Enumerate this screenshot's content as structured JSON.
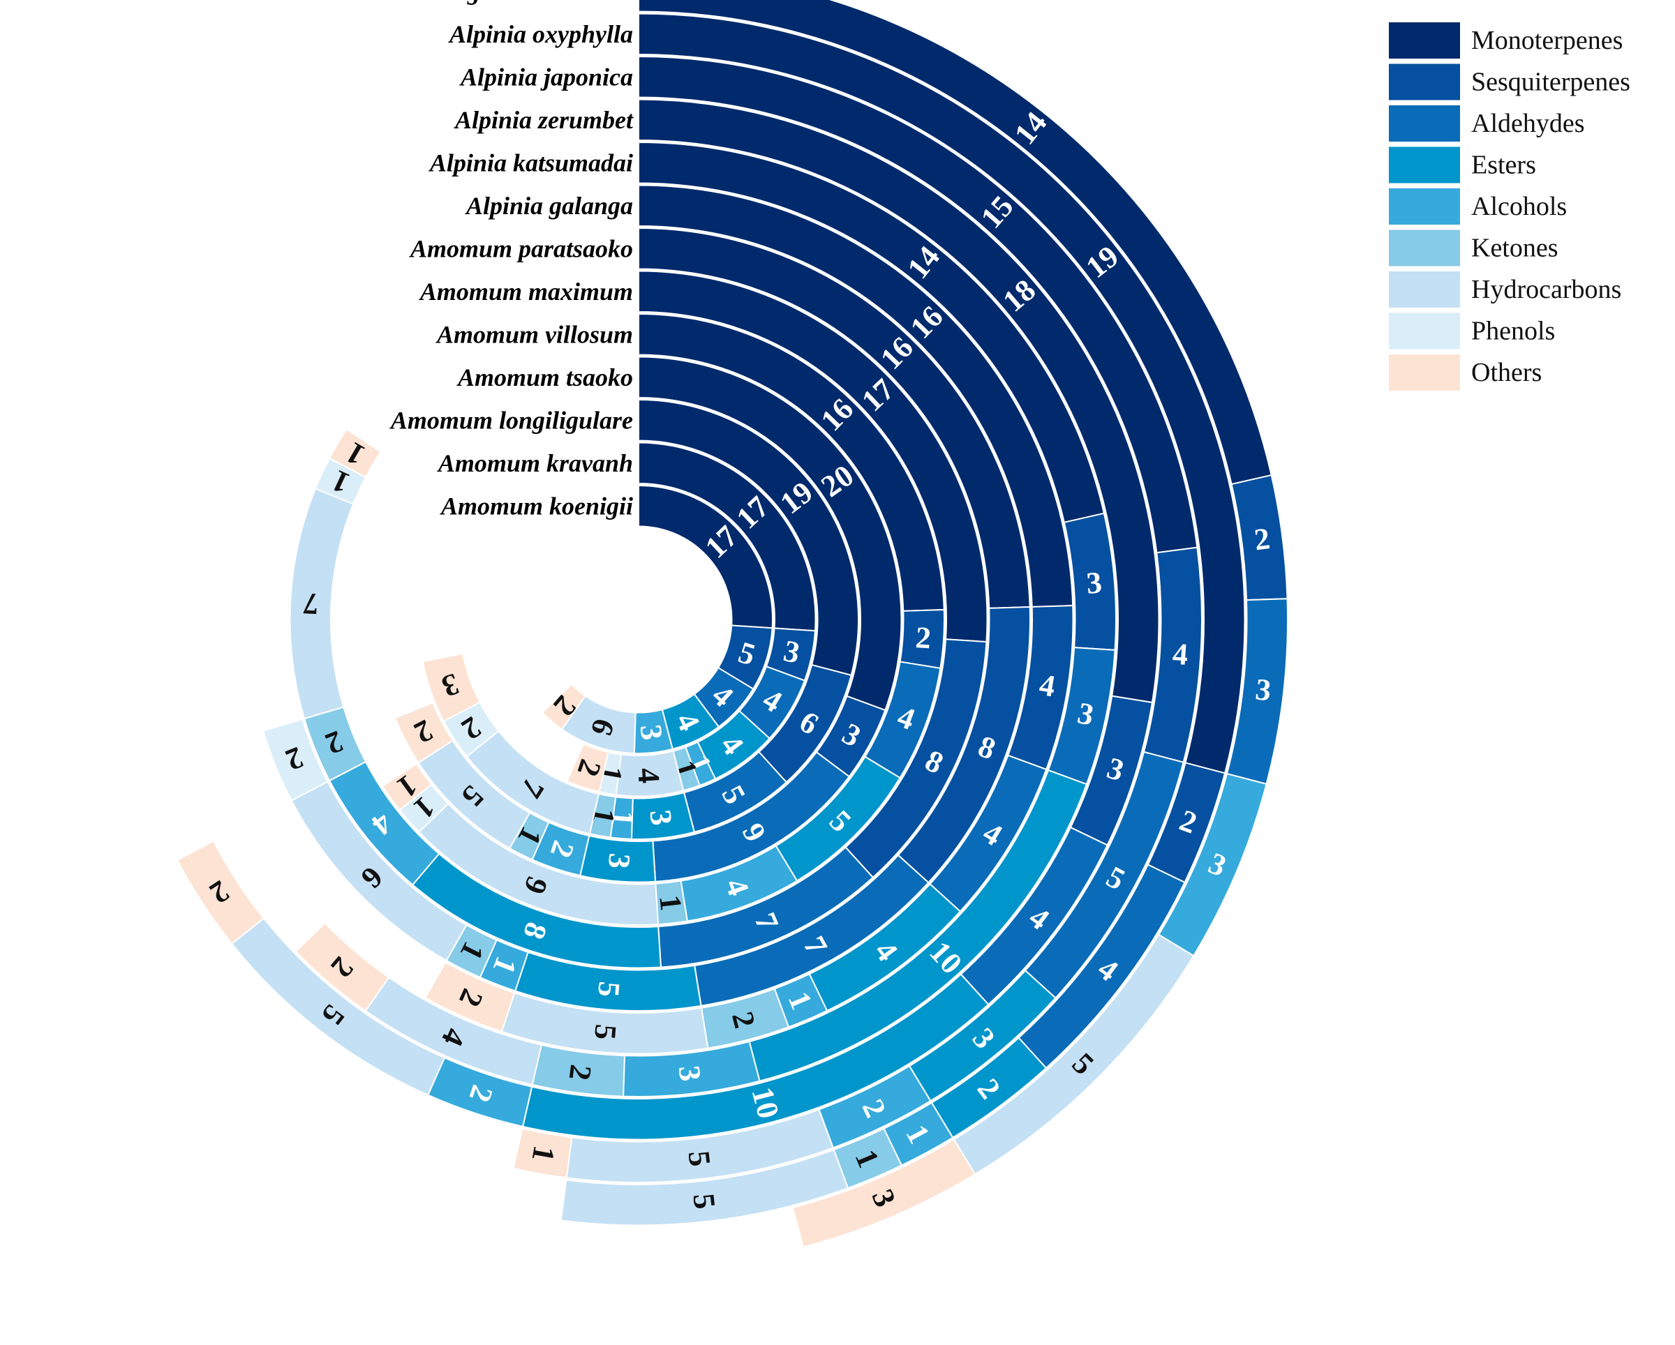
{
  "chart_data": {
    "type": "radial_stacked_bar",
    "title": "",
    "categories": [
      "Monoterpenes",
      "Sesquiterpenes",
      "Aldehydes",
      "Esters",
      "Alcohols",
      "Ketones",
      "Hydrocarbons",
      "Phenols",
      "Others"
    ],
    "colors": {
      "Monoterpenes": "#002a6c",
      "Sesquiterpenes": "#0550a0",
      "Aldehydes": "#0a6cb8",
      "Esters": "#0096cc",
      "Alcohols": "#36aadc",
      "Ketones": "#86cbe8",
      "Hydrocarbons": "#c4e0f4",
      "Phenols": "#daeef9",
      "Others": "#fde3d3"
    },
    "legend_position": "top-right",
    "series": [
      {
        "name": "Zingiber striolatum",
        "values": [
          14,
          2,
          3,
          0,
          3,
          0,
          5,
          0,
          3
        ]
      },
      {
        "name": "Alpinia oxyphylla",
        "values": [
          19,
          2,
          4,
          2,
          1,
          1,
          5,
          0,
          0
        ]
      },
      {
        "name": "Alpinia japonica",
        "values": [
          15,
          4,
          5,
          3,
          2,
          0,
          5,
          0,
          1
        ]
      },
      {
        "name": "Alpinia zerumbet",
        "values": [
          18,
          3,
          4,
          10,
          2,
          0,
          5,
          0,
          2
        ]
      },
      {
        "name": "Alpinia katsumadai",
        "values": [
          14,
          3,
          3,
          10,
          3,
          2,
          4,
          0,
          2
        ]
      },
      {
        "name": "Alpinia galanga",
        "values": [
          16,
          4,
          4,
          4,
          1,
          2,
          5,
          0,
          2
        ]
      },
      {
        "name": "Amomum paratsaoko",
        "values": [
          16,
          8,
          7,
          5,
          1,
          1,
          6,
          2,
          0
        ]
      },
      {
        "name": "Amomum maximum",
        "values": [
          17,
          8,
          7,
          8,
          4,
          2,
          7,
          1,
          1
        ]
      },
      {
        "name": "Amomum villosum",
        "values": [
          16,
          2,
          4,
          5,
          4,
          1,
          9,
          1,
          1
        ]
      },
      {
        "name": "Amomum tsaoko",
        "values": [
          20,
          3,
          9,
          3,
          2,
          1,
          5,
          0,
          2
        ]
      },
      {
        "name": "Amomum longiligulare",
        "values": [
          19,
          6,
          5,
          3,
          1,
          1,
          7,
          2,
          3
        ]
      },
      {
        "name": "Amomum kravanh",
        "values": [
          17,
          3,
          4,
          4,
          1,
          1,
          4,
          1,
          2
        ]
      },
      {
        "name": "Amomum koenigii",
        "values": [
          17,
          5,
          4,
          4,
          3,
          0,
          6,
          0,
          2
        ]
      }
    ]
  }
}
